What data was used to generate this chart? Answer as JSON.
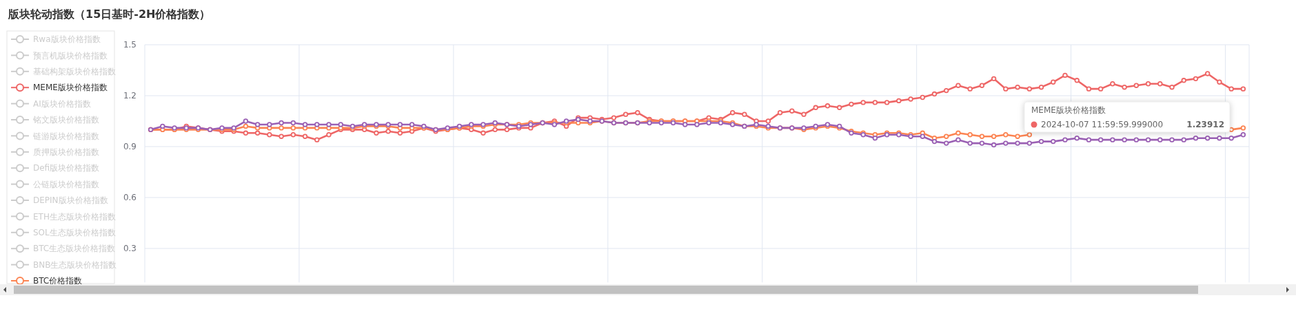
{
  "chart_data": {
    "type": "line",
    "title": "版块轮动指数（15日基时-2H价格指数）",
    "categories": [
      null,
      null,
      null,
      null,
      null,
      null,
      null,
      null,
      null,
      null,
      null,
      null,
      null,
      null,
      null,
      null,
      null,
      null,
      null,
      null,
      null,
      null,
      null,
      null,
      null,
      null,
      null,
      null,
      null,
      null,
      null,
      null,
      null,
      null,
      null,
      null,
      null,
      null,
      null,
      null,
      null,
      null,
      null,
      null,
      null,
      null,
      null,
      null,
      null,
      null,
      null,
      null,
      null,
      null,
      null,
      null,
      null,
      null,
      null,
      null,
      null,
      null,
      null,
      null,
      null,
      null,
      null,
      null,
      null,
      null,
      null,
      null,
      null,
      null,
      null,
      null,
      null,
      null,
      null,
      null,
      null,
      null,
      null,
      null,
      null,
      null,
      null,
      null,
      null,
      null,
      null,
      null,
      null
    ],
    "ylim": [
      0.1,
      1.5
    ],
    "yticks": [
      0.3,
      0.6,
      0.9,
      1.2,
      1.5
    ],
    "grid": true,
    "legend": "left",
    "marker": "circle",
    "line_style": "solid",
    "series": [
      {
        "name": "Rwa版块价格指数",
        "color": "#cccccc",
        "values": [
          null,
          null,
          null,
          null,
          null,
          null,
          null,
          null,
          null,
          null,
          null,
          null,
          null,
          null,
          null,
          null,
          null,
          null,
          null,
          null,
          null,
          null,
          null,
          null,
          null,
          null,
          null,
          null,
          null,
          null,
          null,
          null,
          null,
          null,
          null,
          null,
          null,
          null,
          null,
          null,
          null,
          null,
          null,
          null,
          null,
          null,
          null,
          null,
          null,
          null,
          null,
          null,
          null,
          null,
          null,
          null,
          null,
          null,
          null,
          null,
          null,
          null,
          null,
          null,
          null,
          null,
          null,
          null,
          null,
          null,
          null,
          null,
          null,
          null,
          null,
          null,
          null,
          null,
          null,
          null,
          null,
          null,
          null,
          null,
          null,
          null,
          null,
          null,
          null,
          null,
          null,
          null,
          null
        ]
      },
      {
        "name": "预言机版块价格指数",
        "color": "#cccccc",
        "values": [
          null,
          null,
          null,
          null,
          null,
          null,
          null,
          null,
          null,
          null,
          null,
          null,
          null,
          null,
          null,
          null,
          null,
          null,
          null,
          null,
          null,
          null,
          null,
          null,
          null,
          null,
          null,
          null,
          null,
          null,
          null,
          null,
          null,
          null,
          null,
          null,
          null,
          null,
          null,
          null,
          null,
          null,
          null,
          null,
          null,
          null,
          null,
          null,
          null,
          null,
          null,
          null,
          null,
          null,
          null,
          null,
          null,
          null,
          null,
          null,
          null,
          null,
          null,
          null,
          null,
          null,
          null,
          null,
          null,
          null,
          null,
          null,
          null,
          null,
          null,
          null,
          null,
          null,
          null,
          null,
          null,
          null,
          null,
          null,
          null,
          null,
          null,
          null,
          null,
          null,
          null,
          null,
          null
        ]
      },
      {
        "name": "基础构架版块价格指数",
        "color": "#cccccc",
        "values": [
          null,
          null,
          null,
          null,
          null,
          null,
          null,
          null,
          null,
          null,
          null,
          null,
          null,
          null,
          null,
          null,
          null,
          null,
          null,
          null,
          null,
          null,
          null,
          null,
          null,
          null,
          null,
          null,
          null,
          null,
          null,
          null,
          null,
          null,
          null,
          null,
          null,
          null,
          null,
          null,
          null,
          null,
          null,
          null,
          null,
          null,
          null,
          null,
          null,
          null,
          null,
          null,
          null,
          null,
          null,
          null,
          null,
          null,
          null,
          null,
          null,
          null,
          null,
          null,
          null,
          null,
          null,
          null,
          null,
          null,
          null,
          null,
          null,
          null,
          null,
          null,
          null,
          null,
          null,
          null,
          null,
          null,
          null,
          null,
          null,
          null,
          null,
          null,
          null,
          null,
          null,
          null,
          null
        ]
      },
      {
        "name": "MEME版块价格指数",
        "color": "#ee6666",
        "values": [
          1.0,
          1.0,
          1.0,
          1.02,
          1.01,
          1.0,
          0.99,
          0.99,
          0.98,
          0.98,
          0.97,
          0.96,
          0.97,
          0.96,
          0.94,
          0.97,
          1.0,
          1.0,
          1.0,
          0.98,
          0.99,
          0.98,
          0.99,
          1.01,
          0.99,
          1.0,
          1.01,
          1.0,
          0.98,
          1.0,
          1.0,
          1.01,
          1.01,
          1.04,
          1.05,
          1.02,
          1.07,
          1.07,
          1.06,
          1.07,
          1.09,
          1.1,
          1.06,
          1.05,
          1.05,
          1.05,
          1.05,
          1.07,
          1.06,
          1.1,
          1.09,
          1.05,
          1.05,
          1.1,
          1.11,
          1.09,
          1.13,
          1.14,
          1.13,
          1.15,
          1.16,
          1.16,
          1.16,
          1.17,
          1.18,
          1.19,
          1.21,
          1.23,
          1.26,
          1.24,
          1.26,
          1.3,
          1.24,
          1.25,
          1.24,
          1.25,
          1.28,
          1.32,
          1.29,
          1.24,
          1.24,
          1.27,
          1.25,
          1.26,
          1.27,
          1.27,
          1.25,
          1.29,
          1.3,
          1.33,
          1.28,
          1.24,
          1.24
        ]
      },
      {
        "name": "AI版块价格指数",
        "color": "#cccccc",
        "values": [
          null,
          null,
          null,
          null,
          null,
          null,
          null,
          null,
          null,
          null,
          null,
          null,
          null,
          null,
          null,
          null,
          null,
          null,
          null,
          null,
          null,
          null,
          null,
          null,
          null,
          null,
          null,
          null,
          null,
          null,
          null,
          null,
          null,
          null,
          null,
          null,
          null,
          null,
          null,
          null,
          null,
          null,
          null,
          null,
          null,
          null,
          null,
          null,
          null,
          null,
          null,
          null,
          null,
          null,
          null,
          null,
          null,
          null,
          null,
          null,
          null,
          null,
          null,
          null,
          null,
          null,
          null,
          null,
          null,
          null,
          null,
          null,
          null,
          null,
          null,
          null,
          null,
          null,
          null,
          null,
          null,
          null,
          null,
          null,
          null,
          null,
          null,
          null,
          null,
          null,
          null,
          null,
          null
        ]
      },
      {
        "name": "铭文版块价格指数",
        "color": "#cccccc",
        "values": [
          null,
          null,
          null,
          null,
          null,
          null,
          null,
          null,
          null,
          null,
          null,
          null,
          null,
          null,
          null,
          null,
          null,
          null,
          null,
          null,
          null,
          null,
          null,
          null,
          null,
          null,
          null,
          null,
          null,
          null,
          null,
          null,
          null,
          null,
          null,
          null,
          null,
          null,
          null,
          null,
          null,
          null,
          null,
          null,
          null,
          null,
          null,
          null,
          null,
          null,
          null,
          null,
          null,
          null,
          null,
          null,
          null,
          null,
          null,
          null,
          null,
          null,
          null,
          null,
          null,
          null,
          null,
          null,
          null,
          null,
          null,
          null,
          null,
          null,
          null,
          null,
          null,
          null,
          null,
          null,
          null,
          null,
          null,
          null,
          null,
          null,
          null,
          null,
          null,
          null,
          null,
          null,
          null
        ]
      },
      {
        "name": "链游版块价格指数",
        "color": "#cccccc",
        "values": [
          null,
          null,
          null,
          null,
          null,
          null,
          null,
          null,
          null,
          null,
          null,
          null,
          null,
          null,
          null,
          null,
          null,
          null,
          null,
          null,
          null,
          null,
          null,
          null,
          null,
          null,
          null,
          null,
          null,
          null,
          null,
          null,
          null,
          null,
          null,
          null,
          null,
          null,
          null,
          null,
          null,
          null,
          null,
          null,
          null,
          null,
          null,
          null,
          null,
          null,
          null,
          null,
          null,
          null,
          null,
          null,
          null,
          null,
          null,
          null,
          null,
          null,
          null,
          null,
          null,
          null,
          null,
          null,
          null,
          null,
          null,
          null,
          null,
          null,
          null,
          null,
          null,
          null,
          null,
          null,
          null,
          null,
          null,
          null,
          null,
          null,
          null,
          null,
          null,
          null,
          null,
          null,
          null
        ]
      },
      {
        "name": "质押版块价格指数",
        "color": "#cccccc",
        "values": [
          null,
          null,
          null,
          null,
          null,
          null,
          null,
          null,
          null,
          null,
          null,
          null,
          null,
          null,
          null,
          null,
          null,
          null,
          null,
          null,
          null,
          null,
          null,
          null,
          null,
          null,
          null,
          null,
          null,
          null,
          null,
          null,
          null,
          null,
          null,
          null,
          null,
          null,
          null,
          null,
          null,
          null,
          null,
          null,
          null,
          null,
          null,
          null,
          null,
          null,
          null,
          null,
          null,
          null,
          null,
          null,
          null,
          null,
          null,
          null,
          null,
          null,
          null,
          null,
          null,
          null,
          null,
          null,
          null,
          null,
          null,
          null,
          null,
          null,
          null,
          null,
          null,
          null,
          null,
          null,
          null,
          null,
          null,
          null,
          null,
          null,
          null,
          null,
          null,
          null,
          null,
          null,
          null
        ]
      },
      {
        "name": "Defi版块价格指数",
        "color": "#cccccc",
        "values": [
          null,
          null,
          null,
          null,
          null,
          null,
          null,
          null,
          null,
          null,
          null,
          null,
          null,
          null,
          null,
          null,
          null,
          null,
          null,
          null,
          null,
          null,
          null,
          null,
          null,
          null,
          null,
          null,
          null,
          null,
          null,
          null,
          null,
          null,
          null,
          null,
          null,
          null,
          null,
          null,
          null,
          null,
          null,
          null,
          null,
          null,
          null,
          null,
          null,
          null,
          null,
          null,
          null,
          null,
          null,
          null,
          null,
          null,
          null,
          null,
          null,
          null,
          null,
          null,
          null,
          null,
          null,
          null,
          null,
          null,
          null,
          null,
          null,
          null,
          null,
          null,
          null,
          null,
          null,
          null,
          null,
          null,
          null,
          null,
          null,
          null,
          null,
          null,
          null,
          null,
          null,
          null,
          null
        ]
      },
      {
        "name": "公链版块价格指数",
        "color": "#cccccc",
        "values": [
          null,
          null,
          null,
          null,
          null,
          null,
          null,
          null,
          null,
          null,
          null,
          null,
          null,
          null,
          null,
          null,
          null,
          null,
          null,
          null,
          null,
          null,
          null,
          null,
          null,
          null,
          null,
          null,
          null,
          null,
          null,
          null,
          null,
          null,
          null,
          null,
          null,
          null,
          null,
          null,
          null,
          null,
          null,
          null,
          null,
          null,
          null,
          null,
          null,
          null,
          null,
          null,
          null,
          null,
          null,
          null,
          null,
          null,
          null,
          null,
          null,
          null,
          null,
          null,
          null,
          null,
          null,
          null,
          null,
          null,
          null,
          null,
          null,
          null,
          null,
          null,
          null,
          null,
          null,
          null,
          null,
          null,
          null,
          null,
          null,
          null,
          null,
          null,
          null,
          null,
          null,
          null,
          null
        ]
      },
      {
        "name": "DEPIN版块价格指数",
        "color": "#cccccc",
        "values": [
          null,
          null,
          null,
          null,
          null,
          null,
          null,
          null,
          null,
          null,
          null,
          null,
          null,
          null,
          null,
          null,
          null,
          null,
          null,
          null,
          null,
          null,
          null,
          null,
          null,
          null,
          null,
          null,
          null,
          null,
          null,
          null,
          null,
          null,
          null,
          null,
          null,
          null,
          null,
          null,
          null,
          null,
          null,
          null,
          null,
          null,
          null,
          null,
          null,
          null,
          null,
          null,
          null,
          null,
          null,
          null,
          null,
          null,
          null,
          null,
          null,
          null,
          null,
          null,
          null,
          null,
          null,
          null,
          null,
          null,
          null,
          null,
          null,
          null,
          null,
          null,
          null,
          null,
          null,
          null,
          null,
          null,
          null,
          null,
          null,
          null,
          null,
          null,
          null,
          null,
          null,
          null,
          null
        ]
      },
      {
        "name": "ETH生态版块价格指数",
        "color": "#cccccc",
        "values": [
          null,
          null,
          null,
          null,
          null,
          null,
          null,
          null,
          null,
          null,
          null,
          null,
          null,
          null,
          null,
          null,
          null,
          null,
          null,
          null,
          null,
          null,
          null,
          null,
          null,
          null,
          null,
          null,
          null,
          null,
          null,
          null,
          null,
          null,
          null,
          null,
          null,
          null,
          null,
          null,
          null,
          null,
          null,
          null,
          null,
          null,
          null,
          null,
          null,
          null,
          null,
          null,
          null,
          null,
          null,
          null,
          null,
          null,
          null,
          null,
          null,
          null,
          null,
          null,
          null,
          null,
          null,
          null,
          null,
          null,
          null,
          null,
          null,
          null,
          null,
          null,
          null,
          null,
          null,
          null,
          null,
          null,
          null,
          null,
          null,
          null,
          null,
          null,
          null,
          null,
          null,
          null,
          null
        ]
      },
      {
        "name": "SOL生态版块价格指数",
        "color": "#cccccc",
        "values": [
          null,
          null,
          null,
          null,
          null,
          null,
          null,
          null,
          null,
          null,
          null,
          null,
          null,
          null,
          null,
          null,
          null,
          null,
          null,
          null,
          null,
          null,
          null,
          null,
          null,
          null,
          null,
          null,
          null,
          null,
          null,
          null,
          null,
          null,
          null,
          null,
          null,
          null,
          null,
          null,
          null,
          null,
          null,
          null,
          null,
          null,
          null,
          null,
          null,
          null,
          null,
          null,
          null,
          null,
          null,
          null,
          null,
          null,
          null,
          null,
          null,
          null,
          null,
          null,
          null,
          null,
          null,
          null,
          null,
          null,
          null,
          null,
          null,
          null,
          null,
          null,
          null,
          null,
          null,
          null,
          null,
          null,
          null,
          null,
          null,
          null,
          null,
          null,
          null,
          null,
          null,
          null,
          null
        ]
      },
      {
        "name": "BTC生态版块价格指数",
        "color": "#cccccc",
        "values": [
          null,
          null,
          null,
          null,
          null,
          null,
          null,
          null,
          null,
          null,
          null,
          null,
          null,
          null,
          null,
          null,
          null,
          null,
          null,
          null,
          null,
          null,
          null,
          null,
          null,
          null,
          null,
          null,
          null,
          null,
          null,
          null,
          null,
          null,
          null,
          null,
          null,
          null,
          null,
          null,
          null,
          null,
          null,
          null,
          null,
          null,
          null,
          null,
          null,
          null,
          null,
          null,
          null,
          null,
          null,
          null,
          null,
          null,
          null,
          null,
          null,
          null,
          null,
          null,
          null,
          null,
          null,
          null,
          null,
          null,
          null,
          null,
          null,
          null,
          null,
          null,
          null,
          null,
          null,
          null,
          null,
          null,
          null,
          null,
          null,
          null,
          null,
          null,
          null,
          null,
          null,
          null,
          null
        ]
      },
      {
        "name": "BNB生态版块价格指数",
        "color": "#cccccc",
        "values": [
          null,
          null,
          null,
          null,
          null,
          null,
          null,
          null,
          null,
          null,
          null,
          null,
          null,
          null,
          null,
          null,
          null,
          null,
          null,
          null,
          null,
          null,
          null,
          null,
          null,
          null,
          null,
          null,
          null,
          null,
          null,
          null,
          null,
          null,
          null,
          null,
          null,
          null,
          null,
          null,
          null,
          null,
          null,
          null,
          null,
          null,
          null,
          null,
          null,
          null,
          null,
          null,
          null,
          null,
          null,
          null,
          null,
          null,
          null,
          null,
          null,
          null,
          null,
          null,
          null,
          null,
          null,
          null,
          null,
          null,
          null,
          null,
          null,
          null,
          null,
          null,
          null,
          null,
          null,
          null,
          null,
          null,
          null,
          null,
          null,
          null,
          null,
          null,
          null,
          null,
          null,
          null,
          null
        ]
      },
      {
        "name": "BTC价格指数",
        "color": "#fc8452",
        "values": [
          1.0,
          1.0,
          1.0,
          1.0,
          1.0,
          1.0,
          1.0,
          1.0,
          1.02,
          1.01,
          1.01,
          1.01,
          1.01,
          1.01,
          1.01,
          1.01,
          1.01,
          1.01,
          1.02,
          1.02,
          1.02,
          1.01,
          1.01,
          1.01,
          1.0,
          1.0,
          1.01,
          1.02,
          1.02,
          1.03,
          1.03,
          1.03,
          1.04,
          1.04,
          1.04,
          1.04,
          1.04,
          1.04,
          1.05,
          1.04,
          1.04,
          1.04,
          1.05,
          1.05,
          1.05,
          1.05,
          1.05,
          1.05,
          1.05,
          1.04,
          1.02,
          1.02,
          1.01,
          1.01,
          1.01,
          1.0,
          1.01,
          1.02,
          1.01,
          0.99,
          0.98,
          0.97,
          0.98,
          0.98,
          0.97,
          0.98,
          0.95,
          0.96,
          0.98,
          0.97,
          0.96,
          0.96,
          0.97,
          0.96,
          0.97,
          null,
          null,
          null,
          null,
          null,
          null,
          null,
          null,
          null,
          null,
          null,
          null,
          null,
          null,
          null,
          null,
          1.0,
          1.01
        ]
      },
      {
        "color": "#9a60b4",
        "values": [
          1.0,
          1.02,
          1.01,
          1.01,
          1.01,
          1.0,
          1.01,
          1.01,
          1.05,
          1.03,
          1.03,
          1.04,
          1.04,
          1.03,
          1.03,
          1.03,
          1.03,
          1.02,
          1.03,
          1.03,
          1.03,
          1.03,
          1.03,
          1.02,
          1.0,
          1.01,
          1.02,
          1.03,
          1.03,
          1.04,
          1.03,
          1.02,
          1.03,
          1.04,
          1.03,
          1.05,
          1.06,
          1.05,
          1.05,
          1.04,
          1.04,
          1.04,
          1.04,
          1.04,
          1.04,
          1.03,
          1.03,
          1.04,
          1.04,
          1.03,
          1.02,
          1.03,
          1.02,
          1.01,
          1.01,
          1.01,
          1.02,
          1.03,
          1.02,
          0.98,
          0.97,
          0.95,
          0.97,
          0.97,
          0.96,
          0.96,
          0.93,
          0.92,
          0.94,
          0.92,
          0.92,
          0.91,
          0.92,
          0.92,
          0.92,
          0.93,
          0.93,
          0.94,
          0.95,
          0.94,
          0.94,
          0.94,
          0.94,
          0.94,
          0.94,
          0.94,
          0.94,
          0.94,
          0.95,
          0.95,
          0.95,
          0.95,
          0.97
        ]
      }
    ],
    "annotations": [
      "MEME版块价格指数",
      "2024-10-07 11:59:59.999000",
      "1.23912"
    ]
  }
}
